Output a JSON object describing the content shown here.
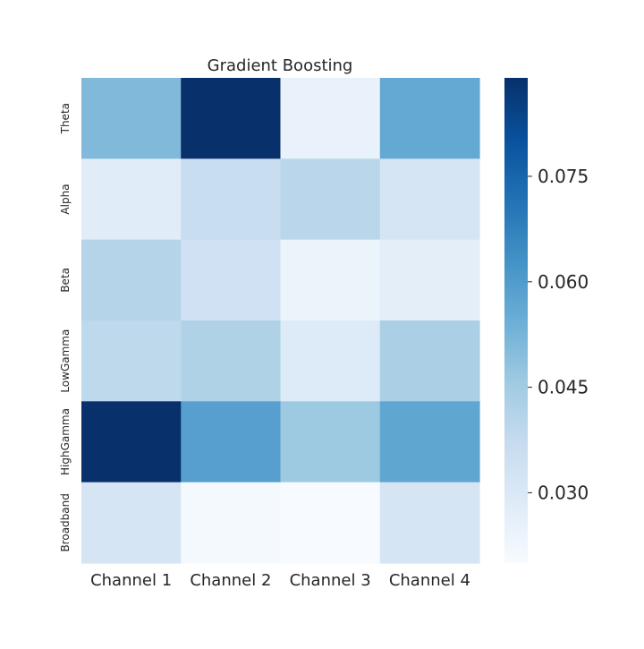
{
  "chart_data": {
    "type": "heatmap",
    "title": "Gradient Boosting",
    "xlabel": "",
    "ylabel": "",
    "columns": [
      "Channel 1",
      "Channel 2",
      "Channel 3",
      "Channel 4"
    ],
    "rows": [
      "Theta",
      "Alpha",
      "Beta",
      "LowGamma",
      "HighGamma",
      "Broadband"
    ],
    "values": [
      [
        0.051,
        0.089,
        0.025,
        0.056
      ],
      [
        0.028,
        0.036,
        0.04,
        0.032
      ],
      [
        0.041,
        0.034,
        0.024,
        0.027
      ],
      [
        0.039,
        0.042,
        0.029,
        0.043
      ],
      [
        0.089,
        0.059,
        0.046,
        0.057
      ],
      [
        0.032,
        0.021,
        0.02,
        0.032
      ]
    ],
    "colorbar": {
      "colormap": "Blues",
      "range": [
        0.02,
        0.089
      ],
      "ticks": [
        0.03,
        0.045,
        0.06,
        0.075
      ],
      "tick_labels": [
        "0.030",
        "0.045",
        "0.060",
        "0.075"
      ]
    },
    "grid": false
  }
}
